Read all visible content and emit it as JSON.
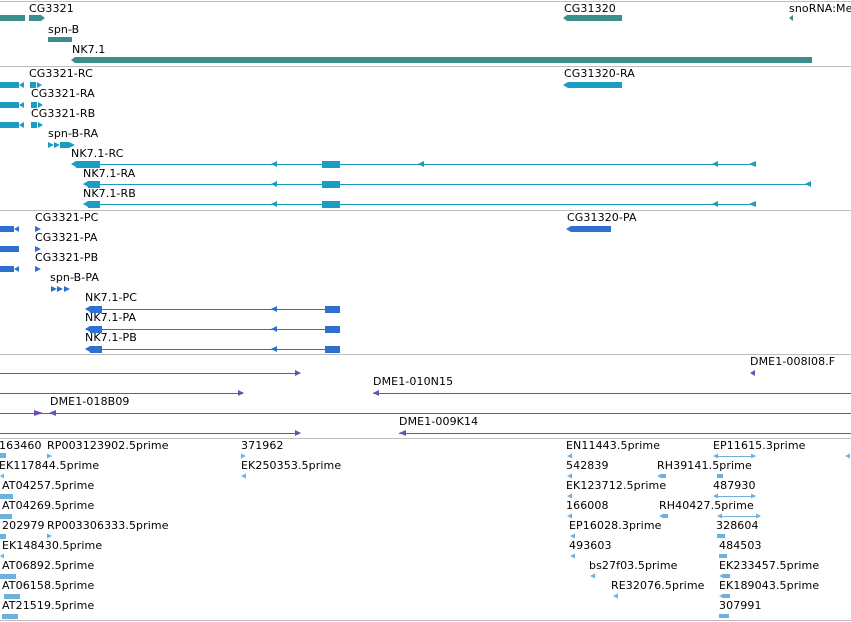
{
  "colors": {
    "gene": "#3a8f8a",
    "transcript": "#1b9cc0",
    "protein": "#2f6fd0",
    "clone": "#6e4fb0",
    "est": "#6fb0dc",
    "separator": "#bdbdbd"
  },
  "tracks": {
    "gene": {
      "labels": [
        "CG3321",
        "spn-B",
        "NK7.1",
        "CG31320",
        "snoRNA:Me"
      ]
    },
    "transcript": {
      "labels": [
        "CG3321-RC",
        "CG3321-RA",
        "CG3321-RB",
        "spn-B-RA",
        "NK7.1-RC",
        "NK7.1-RA",
        "NK7.1-RB",
        "CG31320-RA"
      ]
    },
    "protein": {
      "labels": [
        "CG3321-PC",
        "CG3321-PA",
        "CG3321-PB",
        "spn-B-PA",
        "NK7.1-PC",
        "NK7.1-PA",
        "NK7.1-PB",
        "CG31320-PA"
      ]
    },
    "clone": {
      "labels": [
        "DME1-008I08.F",
        "DME1-010N15",
        "DME1-018B09",
        "DME1-009K14"
      ]
    },
    "est": {
      "labels": [
        "163460",
        "RP003123902.5prime",
        "371962",
        "EN11443.5prime",
        "EP11615.3prime",
        "EK117844.5prime",
        "EK250353.5prime",
        "542839",
        "RH39141.5prime",
        "AT04257.5prime",
        "EK123712.5prime",
        "487930",
        "AT04269.5prime",
        "166008",
        "RH40427.5prime",
        "202979",
        "RP003306333.5prime",
        "EP16028.3prime",
        "328604",
        "EK148430.5prime",
        "493603",
        "484503",
        "AT06892.5prime",
        "bs27f03.5prime",
        "EK233457.5prime",
        "AT06158.5prime",
        "RE32076.5prime",
        "EK189043.5prime",
        "AT21519.5prime",
        "307991"
      ]
    }
  }
}
